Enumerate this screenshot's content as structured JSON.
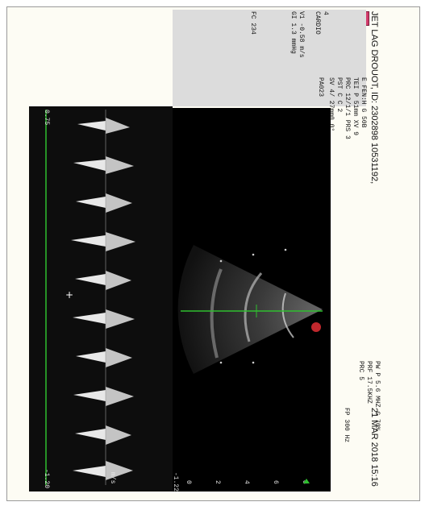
{
  "header": {
    "patient": "JET LAG DROUOT,  ID: 2302898 10531192,",
    "datetime": "21 MAR 2018 15:16"
  },
  "probe": {
    "mode": "CARDIO",
    "gain_label": "4",
    "level": "11"
  },
  "doppler_params": {
    "line1": "E  FEN:H     G  50B",
    "line2": "TEI  P 51mm   XV 9",
    "line3": "     PRC 12/1/1 PRS 3",
    "line4": "     PST   C    C  2",
    "line5": "     SV  4/ 27mm0  0°",
    "pa": "PA023"
  },
  "measurements": {
    "v1": "V1     -0.58 m/s",
    "gi": "GI      1.3 mmHg"
  },
  "fc": "FC  234",
  "pw_params": {
    "line1": "PW P  5.6 MHZ G 70%",
    "line2": "PRF 17.5KHZ",
    "line3": "PRC 5"
  },
  "fp": "FP  300 Hz",
  "scale": {
    "top_left": "0.75",
    "bottom_left": "-1.20",
    "unit": "m/s",
    "bottom_right": "-1.22"
  },
  "depth_ticks": [
    "0",
    "2",
    "4",
    "6",
    "8"
  ],
  "colors": {
    "doppler_line": "#2fbf2f",
    "marker_red": "#c0282d",
    "colorbar_blue": "#1b6fd1",
    "logo_pink": "#d23a6a"
  }
}
